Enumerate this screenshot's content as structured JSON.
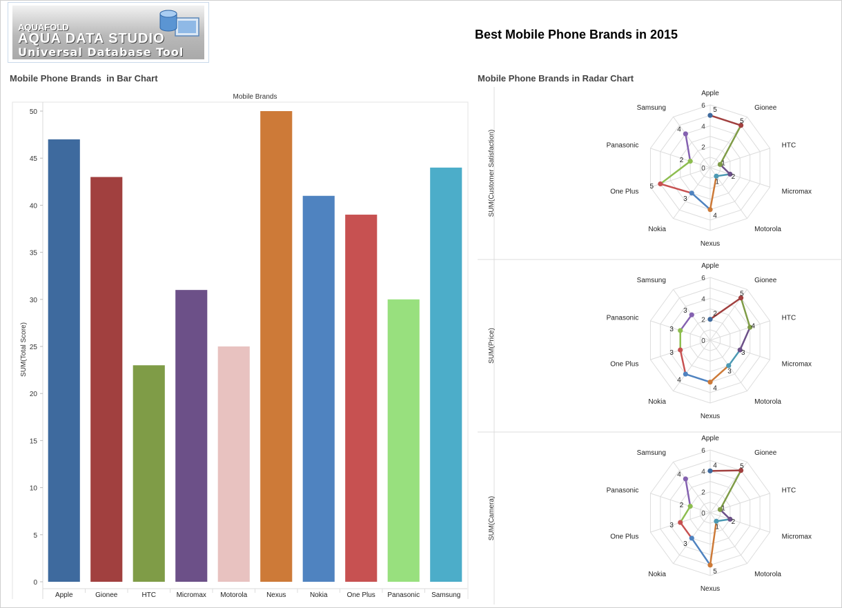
{
  "logo": {
    "brand": "AQUAFOLD",
    "product": "AQUA DATA STUDIO",
    "tagline": "Universal Database Tool",
    "icon": "database-icon"
  },
  "page_title": "Best Mobile Phone Brands in 2015",
  "bar_section_title": "Mobile Phone Brands  in Bar Chart",
  "radar_section_title": "Mobile Phone Brands in Radar Chart",
  "chart_data": [
    {
      "type": "bar",
      "title": "",
      "xlabel": "Mobile Brands",
      "ylabel": "SUM(Total Score)",
      "ylim": [
        0,
        50
      ],
      "yticks": [
        0,
        5,
        10,
        15,
        20,
        25,
        30,
        35,
        40,
        45,
        50
      ],
      "categories": [
        "Apple",
        "Gionee",
        "HTC",
        "Micromax",
        "Motorola",
        "Nexus",
        "Nokia",
        "One Plus",
        "Panasonic",
        "Samsung"
      ],
      "values": [
        47,
        43,
        23,
        31,
        25,
        50,
        41,
        39,
        30,
        44
      ],
      "colors": [
        "#3e6a9e",
        "#a1403f",
        "#7f9c47",
        "#6c5088",
        "#e8c2c0",
        "#cd7a38",
        "#4f83c0",
        "#c75151",
        "#98e07e",
        "#4cadc9"
      ],
      "grid": false,
      "legend": "none"
    },
    {
      "type": "radar",
      "ylabel": "SUM(Customer Satisfaction)",
      "categories": [
        "Apple",
        "Gionee",
        "HTC",
        "Micromax",
        "Motorola",
        "Nexus",
        "Nokia",
        "One Plus",
        "Panasonic",
        "Samsung"
      ],
      "values": [
        5,
        5,
        1,
        2,
        1,
        4,
        3,
        5,
        2,
        4
      ],
      "rings": [
        0,
        2,
        4,
        6
      ],
      "colors": [
        "#3e6a9e",
        "#a1403f",
        "#7f9c47",
        "#6c5088",
        "#4c99b3",
        "#cd7a38",
        "#4f83c0",
        "#c75151",
        "#8dbd4f",
        "#8461b0"
      ]
    },
    {
      "type": "radar",
      "ylabel": "SUM(Price)",
      "categories": [
        "Apple",
        "Gionee",
        "HTC",
        "Micromax",
        "Motorola",
        "Nexus",
        "Nokia",
        "One Plus",
        "Panasonic",
        "Samsung"
      ],
      "values": [
        2,
        5,
        4,
        3,
        3,
        4,
        4,
        3,
        3,
        3
      ],
      "rings": [
        0,
        2,
        4,
        6
      ],
      "colors": [
        "#3e6a9e",
        "#a1403f",
        "#7f9c47",
        "#6c5088",
        "#4c99b3",
        "#cd7a38",
        "#4f83c0",
        "#c75151",
        "#8dbd4f",
        "#8461b0"
      ]
    },
    {
      "type": "radar",
      "ylabel": "SUM(Camera)",
      "categories": [
        "Apple",
        "Gionee",
        "HTC",
        "Micromax",
        "Motorola",
        "Nexus",
        "Nokia",
        "One Plus",
        "Panasonic",
        "Samsung"
      ],
      "values": [
        4,
        5,
        1,
        2,
        1,
        5,
        3,
        3,
        2,
        4
      ],
      "rings": [
        0,
        2,
        4,
        6
      ],
      "colors": [
        "#3e6a9e",
        "#a1403f",
        "#7f9c47",
        "#6c5088",
        "#4c99b3",
        "#cd7a38",
        "#4f83c0",
        "#c75151",
        "#8dbd4f",
        "#8461b0"
      ]
    }
  ]
}
